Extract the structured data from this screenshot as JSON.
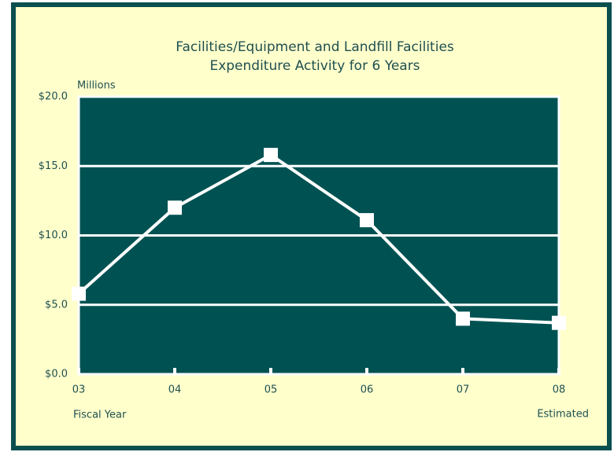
{
  "chart_data": {
    "type": "line",
    "title": [
      "Facilities/Equipment and Landfill Facilities",
      "Expenditure Activity for 6 Years"
    ],
    "y_axis_label": "Millions",
    "x_axis_label": "Fiscal Year",
    "annotation": "Estimated",
    "categories": [
      "03",
      "04",
      "05",
      "06",
      "07",
      "08"
    ],
    "series": [
      {
        "name": "Expenditure",
        "color": "#ffffff",
        "values": [
          5.8,
          12.0,
          15.8,
          11.1,
          4.0,
          3.7
        ]
      }
    ],
    "ylim": [
      0,
      20
    ],
    "yticks": [
      {
        "value": 0,
        "label": "$0.0"
      },
      {
        "value": 5,
        "label": "$5.0"
      },
      {
        "value": 10,
        "label": "$10.0"
      },
      {
        "value": 15,
        "label": "$15.0"
      },
      {
        "value": 20,
        "label": "$20.0"
      }
    ],
    "grid": true,
    "plot_color": "#005252",
    "background": "#ffffcc"
  }
}
